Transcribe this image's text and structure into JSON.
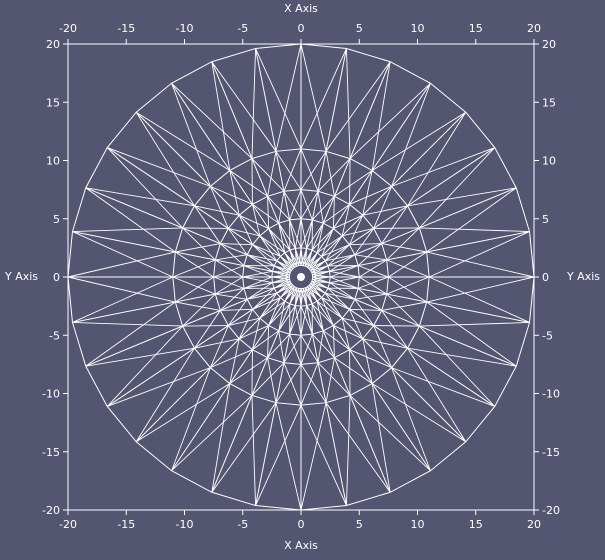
{
  "theme": {
    "background": "#535571",
    "foreground": "#ffffff"
  },
  "axes": {
    "x_title": "X Axis",
    "y_title": "Y Axis",
    "x_range": [
      -20,
      20
    ],
    "y_range": [
      -20,
      20
    ],
    "x_ticks": [
      -20,
      -15,
      -10,
      -5,
      0,
      5,
      10,
      15,
      20
    ],
    "y_ticks": [
      -20,
      -15,
      -10,
      -5,
      0,
      5,
      10,
      15,
      20
    ],
    "x_tick_labels": [
      "-20",
      "-15",
      "-10",
      "-5",
      "0",
      "5",
      "10",
      "15",
      "20"
    ],
    "y_tick_labels": [
      "-20",
      "-15",
      "-10",
      "-5",
      "0",
      "5",
      "10",
      "15",
      "20"
    ]
  },
  "mesh": {
    "type": "polar wireframe",
    "segments": 32,
    "rings": [
      1,
      2.5,
      5,
      7.5,
      11,
      20
    ],
    "center": [
      0,
      0
    ]
  }
}
